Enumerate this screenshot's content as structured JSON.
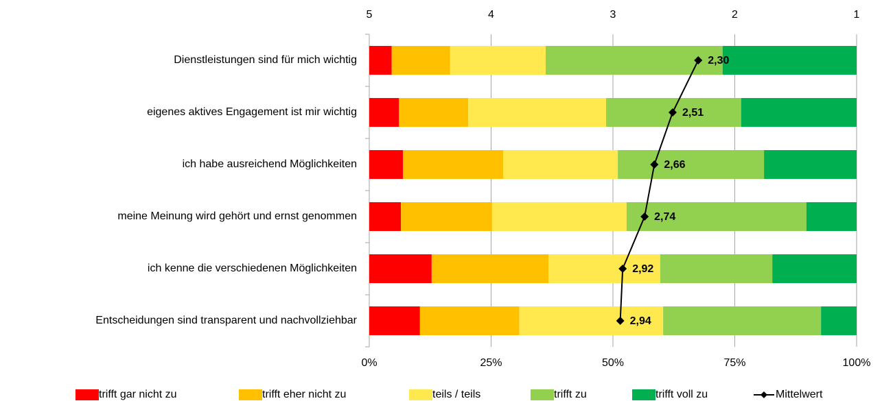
{
  "chart_data": {
    "type": "stacked_bar_horizontal",
    "categories": [
      "Dienstleistungen sind für mich wichtig",
      "eigenes aktives Engagement ist mir wichtig",
      "ich habe ausreichend Möglichkeiten",
      "meine Meinung wird gehört und ernst genommen",
      "ich kenne die verschiedenen Möglichkeiten",
      "Entscheidungen sind transparent und nachvollziehbar"
    ],
    "series": [
      {
        "name": "trifft gar nicht zu",
        "color": "#ff0000",
        "values": [
          4.6,
          6.1,
          6.9,
          6.5,
          12.8,
          10.4
        ]
      },
      {
        "name": "trifft eher nicht zu",
        "color": "#ffc000",
        "values": [
          12.0,
          14.2,
          20.6,
          18.7,
          24.0,
          20.4
        ]
      },
      {
        "name": "teils / teils",
        "color": "#ffe94f",
        "values": [
          19.6,
          28.3,
          23.5,
          27.6,
          22.9,
          29.5
        ]
      },
      {
        "name": "trifft zu",
        "color": "#92d050",
        "values": [
          36.3,
          27.7,
          30.0,
          36.9,
          23.0,
          32.4
        ]
      },
      {
        "name": "trifft voll zu",
        "color": "#00b050",
        "values": [
          27.5,
          23.7,
          19.0,
          10.3,
          17.3,
          7.3
        ]
      }
    ],
    "mean": {
      "name": "Mittelwert",
      "color": "#000000",
      "axis": "x2",
      "values": [
        2.3,
        2.51,
        2.66,
        2.74,
        2.92,
        2.94
      ],
      "value_labels": [
        "2,30",
        "2,51",
        "2,66",
        "2,74",
        "2,92",
        "2,94"
      ]
    },
    "xlim": [
      0,
      100
    ],
    "xticks": [
      {
        "value": 0,
        "label": "0%"
      },
      {
        "value": 25,
        "label": "25%"
      },
      {
        "value": 50,
        "label": "50%"
      },
      {
        "value": 75,
        "label": "75%"
      },
      {
        "value": 100,
        "label": "100%"
      }
    ],
    "x2lim": [
      5,
      1
    ],
    "x2ticks": [
      5,
      4,
      3,
      2,
      1
    ],
    "grid": true,
    "legend": "bottom"
  }
}
